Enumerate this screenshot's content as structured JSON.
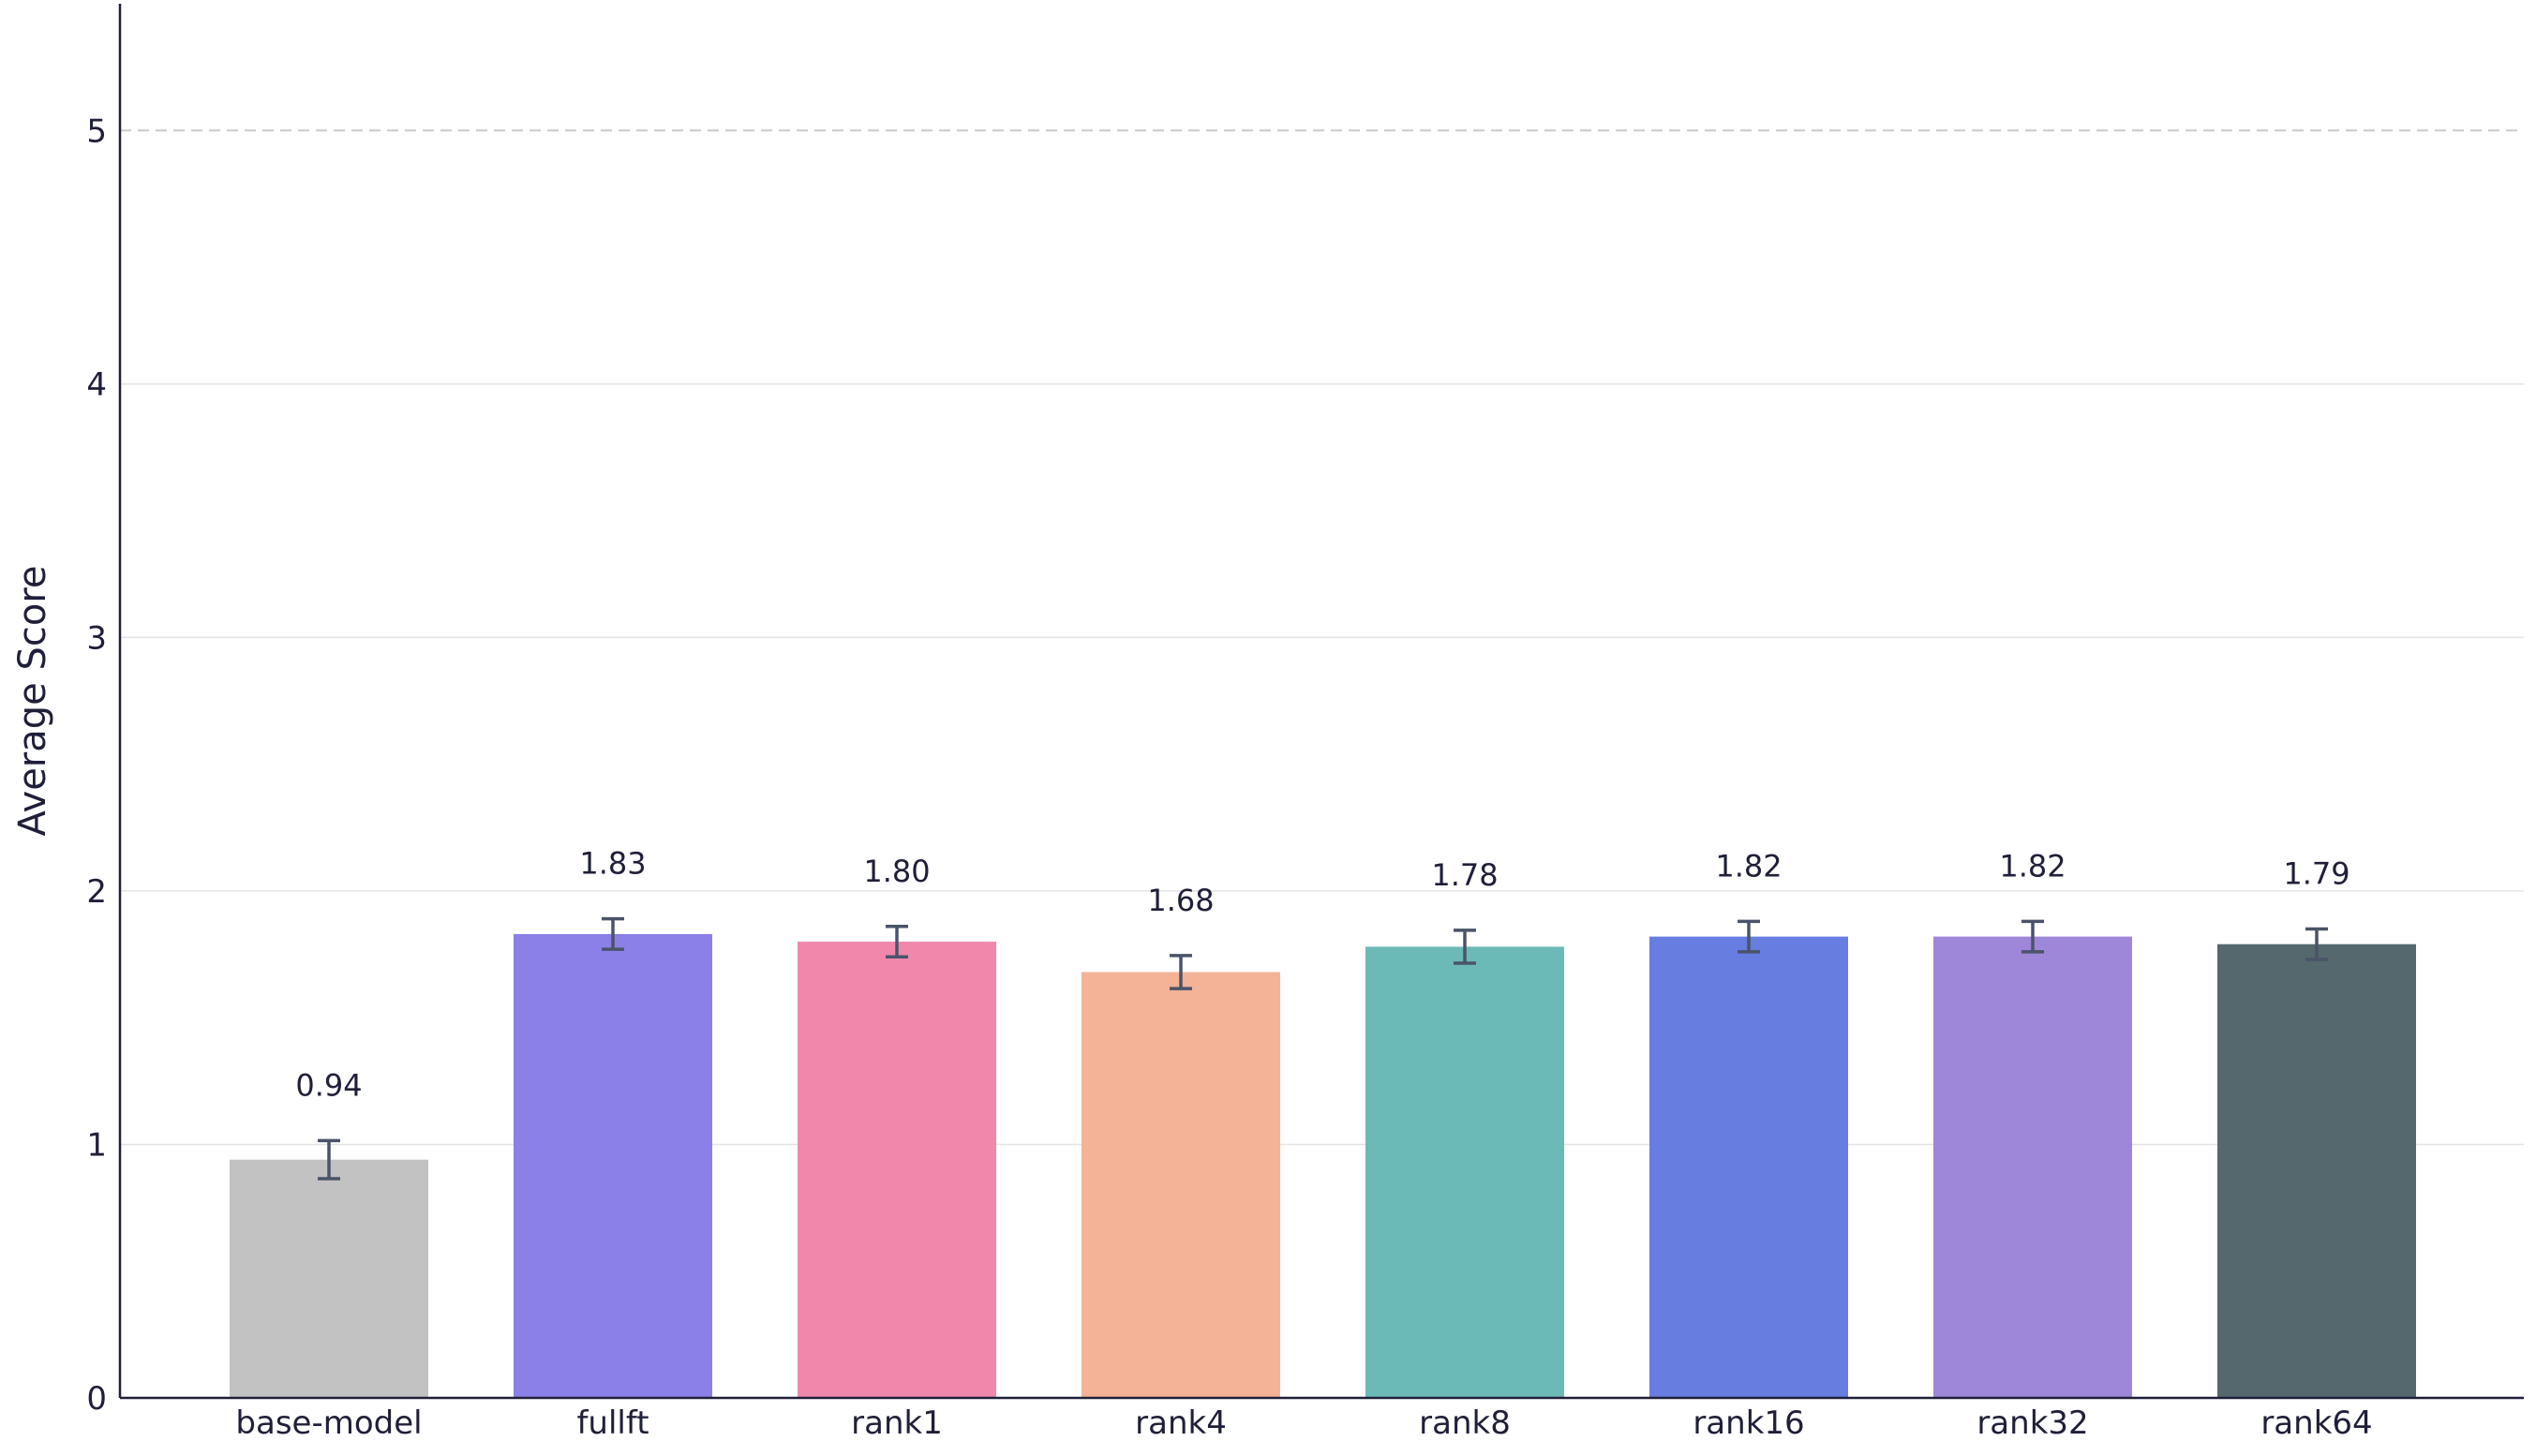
{
  "chart_data": {
    "type": "bar",
    "categories": [
      "base-model",
      "fullft",
      "rank1",
      "rank4",
      "rank8",
      "rank16",
      "rank32",
      "rank64"
    ],
    "values": [
      0.94,
      1.83,
      1.8,
      1.68,
      1.78,
      1.82,
      1.82,
      1.79
    ],
    "value_labels": [
      "0.94",
      "1.83",
      "1.80",
      "1.68",
      "1.78",
      "1.82",
      "1.82",
      "1.79"
    ],
    "error": [
      0.075,
      0.06,
      0.06,
      0.065,
      0.065,
      0.06,
      0.06,
      0.06
    ],
    "colors": [
      "#c2c2c2",
      "#8b80e8",
      "#f088ab",
      "#f4b396",
      "#6bbab7",
      "#677de0",
      "#9e86d9",
      "#55686e"
    ],
    "error_color": "#4a5468",
    "title": "",
    "xlabel": "",
    "ylabel": "Average Score",
    "ylim": [
      0,
      5.5
    ],
    "yticks": [
      0,
      1,
      2,
      3,
      4,
      5
    ],
    "ytick_labels": [
      "0",
      "1",
      "2",
      "3",
      "4",
      "5"
    ],
    "grid": "horizontal",
    "reference_line": 5
  }
}
